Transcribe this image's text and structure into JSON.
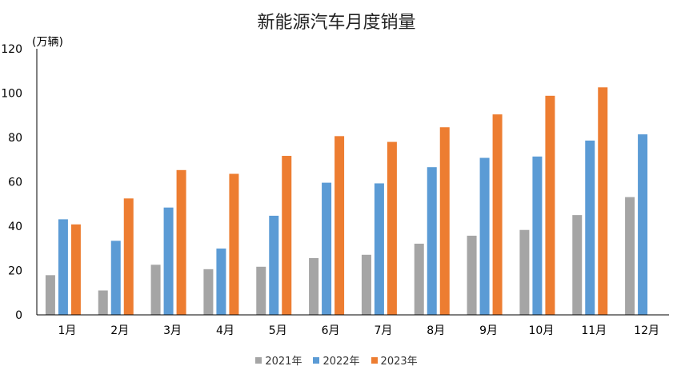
{
  "chart_data": {
    "type": "bar",
    "title": "新能源汽车月度销量",
    "ylabel": "(万辆)",
    "xlabel": "",
    "ylim": [
      0,
      120
    ],
    "yticks": [
      0,
      20,
      40,
      60,
      80,
      100,
      120
    ],
    "grid": false,
    "legend_position": "bottom",
    "categories": [
      "1月",
      "2月",
      "3月",
      "4月",
      "5月",
      "6月",
      "7月",
      "8月",
      "9月",
      "10月",
      "11月",
      "12月"
    ],
    "series": [
      {
        "name": "2021年",
        "color": "#A5A5A5",
        "values": [
          17.9,
          11.0,
          22.6,
          20.6,
          21.7,
          25.6,
          27.1,
          32.1,
          35.7,
          38.3,
          45.0,
          53.1
        ]
      },
      {
        "name": "2022年",
        "color": "#5B9BD5",
        "values": [
          43.1,
          33.4,
          48.4,
          29.9,
          44.7,
          59.6,
          59.3,
          66.6,
          70.8,
          71.4,
          78.6,
          81.4
        ]
      },
      {
        "name": "2023年",
        "color": "#ED7D31",
        "values": [
          40.8,
          52.5,
          65.3,
          63.6,
          71.7,
          80.6,
          78.0,
          84.6,
          90.4,
          98.8,
          102.6,
          null
        ]
      }
    ]
  }
}
